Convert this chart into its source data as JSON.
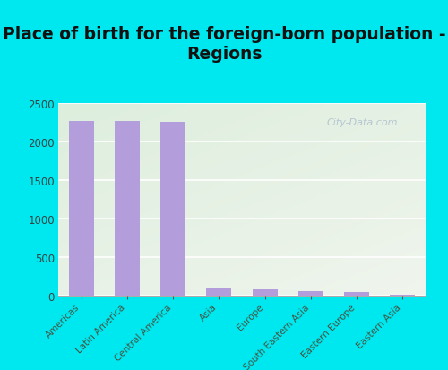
{
  "title": "Place of birth for the foreign-born population -\nRegions",
  "categories": [
    "Americas",
    "Latin America",
    "Central America",
    "Asia",
    "Europe",
    "South Eastern Asia",
    "Eastern Europe",
    "Eastern Asia"
  ],
  "values": [
    2270,
    2268,
    2255,
    95,
    85,
    65,
    52,
    18
  ],
  "bar_color": "#b39ddb",
  "background_outer": "#00e8ef",
  "background_inner_topleft": "#ddeedd",
  "background_inner_white": "#f8f8f4",
  "ylim": [
    0,
    2500
  ],
  "yticks": [
    0,
    500,
    1000,
    1500,
    2000,
    2500
  ],
  "title_fontsize": 13.5,
  "tick_label_fontsize": 8.5,
  "xtick_label_fontsize": 7.5,
  "watermark": "City-Data.com"
}
